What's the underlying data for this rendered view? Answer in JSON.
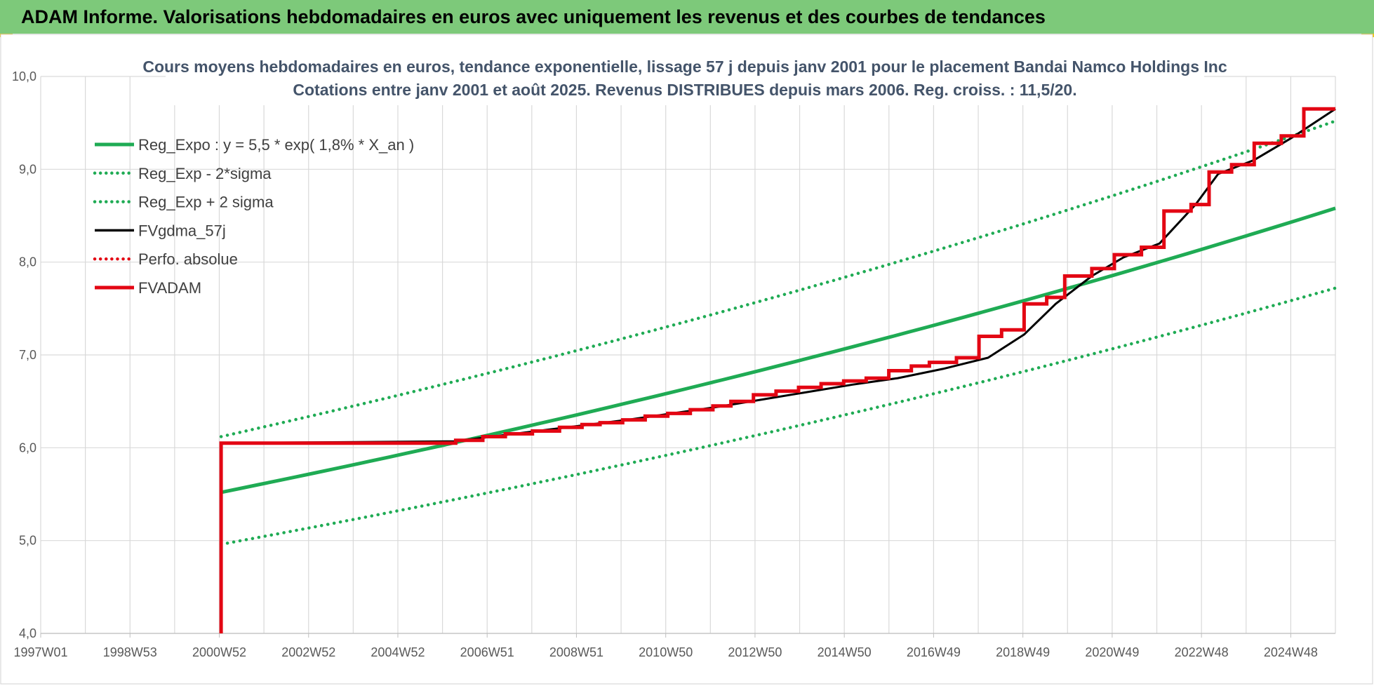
{
  "banner": {
    "title": "ADAM Informe. Valorisations hebdomadaires en euros avec uniquement les revenus et des courbes de tendances"
  },
  "colors": {
    "banner_bg": "#7dc97a",
    "trend": "#1fab54",
    "fvgdma": "#000000",
    "fvadam": "#e30613",
    "grid": "#d9d9d9"
  },
  "chart_data": {
    "type": "line",
    "title": [
      "Cours moyens hebdomadaires en euros, tendance exponentielle, lissage 57 j depuis janv 2001 pour le placement Bandai Namco Holdings Inc",
      "Cotations entre janv 2001 et août 2025. Revenus DISTRIBUES depuis mars 2006. Reg. croiss. : 11,5/20."
    ],
    "xlabel": "",
    "ylabel": "",
    "grid": true,
    "legend_position": "top-left",
    "ylim": [
      4.0,
      10.0
    ],
    "y_ticks": [
      "4,0",
      "5,0",
      "6,0",
      "7,0",
      "8,0",
      "9,0",
      "10,0"
    ],
    "x_tick_labels": [
      "1997W01",
      "1998W53",
      "2000W52",
      "2002W52",
      "2004W52",
      "2006W51",
      "2008W51",
      "2010W50",
      "2012W50",
      "2014W50",
      "2016W49",
      "2018W49",
      "2020W49",
      "2022W48",
      "2024W48"
    ],
    "x_range_years": [
      1997.0,
      2025.7
    ],
    "series": [
      {
        "name": "Reg_Expo : y = 5,5 * exp( 1,8% *  X_an )",
        "style": "solid",
        "color": "#1fab54",
        "x": [
          2001.0,
          2025.7
        ],
        "y": [
          5.52,
          8.58
        ],
        "shape": "exponential"
      },
      {
        "name": "Reg_Exp - 2*sigma",
        "style": "dotted",
        "color": "#1fab54",
        "x": [
          2001.0,
          2025.7
        ],
        "y": [
          4.96,
          7.72
        ],
        "shape": "exponential"
      },
      {
        "name": "Reg_Exp + 2 sigma",
        "style": "dotted",
        "color": "#1fab54",
        "x": [
          2001.0,
          2025.7
        ],
        "y": [
          6.12,
          9.52
        ],
        "shape": "exponential"
      },
      {
        "name": "FVgdma_57j",
        "style": "solid",
        "color": "#000000",
        "x": [
          2001.0,
          2006.2,
          2007.0,
          2008.0,
          2009.0,
          2010.0,
          2011.0,
          2012.0,
          2013.0,
          2014.0,
          2015.0,
          2016.0,
          2017.0,
          2018.0,
          2018.8,
          2019.5,
          2020.3,
          2021.0,
          2021.8,
          2022.6,
          2023.1,
          2023.9,
          2024.7,
          2025.7
        ],
        "y": [
          6.05,
          6.07,
          6.12,
          6.18,
          6.24,
          6.3,
          6.37,
          6.44,
          6.52,
          6.6,
          6.68,
          6.75,
          6.85,
          6.97,
          7.22,
          7.55,
          7.85,
          8.05,
          8.2,
          8.62,
          8.95,
          9.1,
          9.33,
          9.65
        ]
      },
      {
        "name": "Perfo. absolue",
        "style": "dotted",
        "color": "#e30613",
        "x": [],
        "y": []
      },
      {
        "name": "FVADAM",
        "style": "solid-step",
        "color": "#e30613",
        "x": [
          2001.0,
          2001.0,
          2006.2,
          2006.2,
          2006.8,
          2006.8,
          2007.3,
          2007.3,
          2007.9,
          2007.9,
          2008.5,
          2008.5,
          2009.0,
          2009.0,
          2009.4,
          2009.4,
          2009.9,
          2009.9,
          2010.4,
          2010.4,
          2010.9,
          2010.9,
          2011.4,
          2011.4,
          2011.9,
          2011.9,
          2012.3,
          2012.3,
          2012.8,
          2012.8,
          2013.3,
          2013.3,
          2013.8,
          2013.8,
          2014.3,
          2014.3,
          2014.8,
          2014.8,
          2015.3,
          2015.3,
          2015.8,
          2015.8,
          2016.3,
          2016.3,
          2016.7,
          2016.7,
          2017.3,
          2017.3,
          2017.8,
          2017.8,
          2018.3,
          2018.3,
          2018.8,
          2018.8,
          2019.3,
          2019.3,
          2019.7,
          2019.7,
          2020.3,
          2020.3,
          2020.8,
          2020.8,
          2021.4,
          2021.4,
          2021.9,
          2021.9,
          2022.5,
          2022.5,
          2022.9,
          2022.9,
          2023.4,
          2023.4,
          2023.9,
          2023.9,
          2024.5,
          2024.5,
          2025.0,
          2025.0,
          2025.3,
          2025.3,
          2025.7
        ],
        "y": [
          4.0,
          6.05,
          6.05,
          6.08,
          6.08,
          6.12,
          6.12,
          6.15,
          6.15,
          6.18,
          6.18,
          6.22,
          6.22,
          6.25,
          6.25,
          6.27,
          6.27,
          6.3,
          6.3,
          6.34,
          6.34,
          6.37,
          6.37,
          6.41,
          6.41,
          6.45,
          6.45,
          6.5,
          6.5,
          6.57,
          6.57,
          6.61,
          6.61,
          6.65,
          6.65,
          6.69,
          6.69,
          6.72,
          6.72,
          6.75,
          6.75,
          6.83,
          6.83,
          6.88,
          6.88,
          6.92,
          6.92,
          6.97,
          6.97,
          7.2,
          7.2,
          7.27,
          7.27,
          7.55,
          7.55,
          7.62,
          7.62,
          7.85,
          7.85,
          7.93,
          7.93,
          8.08,
          8.08,
          8.16,
          8.16,
          8.55,
          8.55,
          8.62,
          8.62,
          8.97,
          8.97,
          9.05,
          9.05,
          9.28,
          9.28,
          9.36,
          9.36,
          9.65,
          9.65,
          9.65,
          9.65
        ]
      }
    ]
  }
}
